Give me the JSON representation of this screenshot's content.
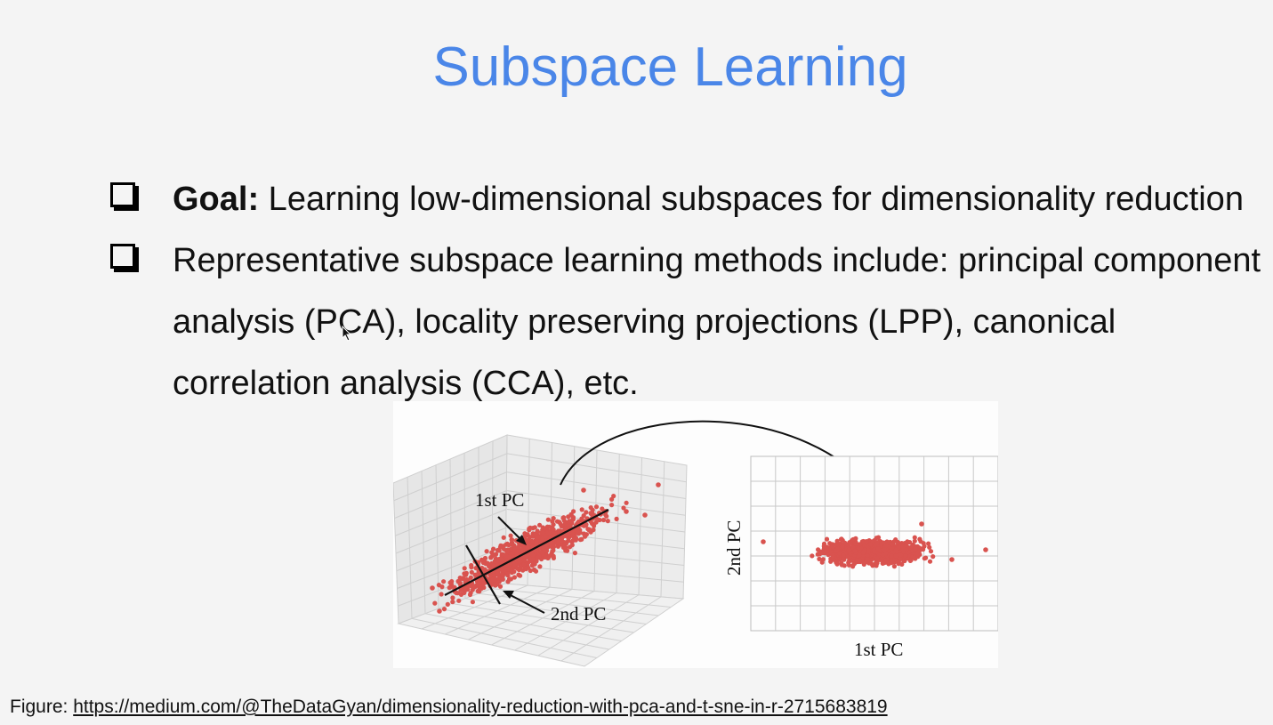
{
  "slide": {
    "title": "Subspace Learning",
    "bullets": [
      {
        "lead": "Goal:",
        "text": " Learning low-dimensional subspaces for dimensionality reduction"
      },
      {
        "lines": [
          "Representative subspace learning methods include: principal component",
          "analysis (PCA), locality preserving projections (LPP), canonical",
          "correlation analysis (CCA), etc."
        ]
      }
    ]
  },
  "figure": {
    "label_1st_pc": "1st PC",
    "label_2nd_pc": "2nd PC",
    "axis_x": "1st PC",
    "axis_y": "2nd PC",
    "point_color": "#d9534f"
  },
  "caption": {
    "prefix": "Figure: ",
    "link": "https://medium.com/@TheDataGyan/dimensionality-reduction-with-pca-and-t-sne-in-r-2715683819"
  }
}
